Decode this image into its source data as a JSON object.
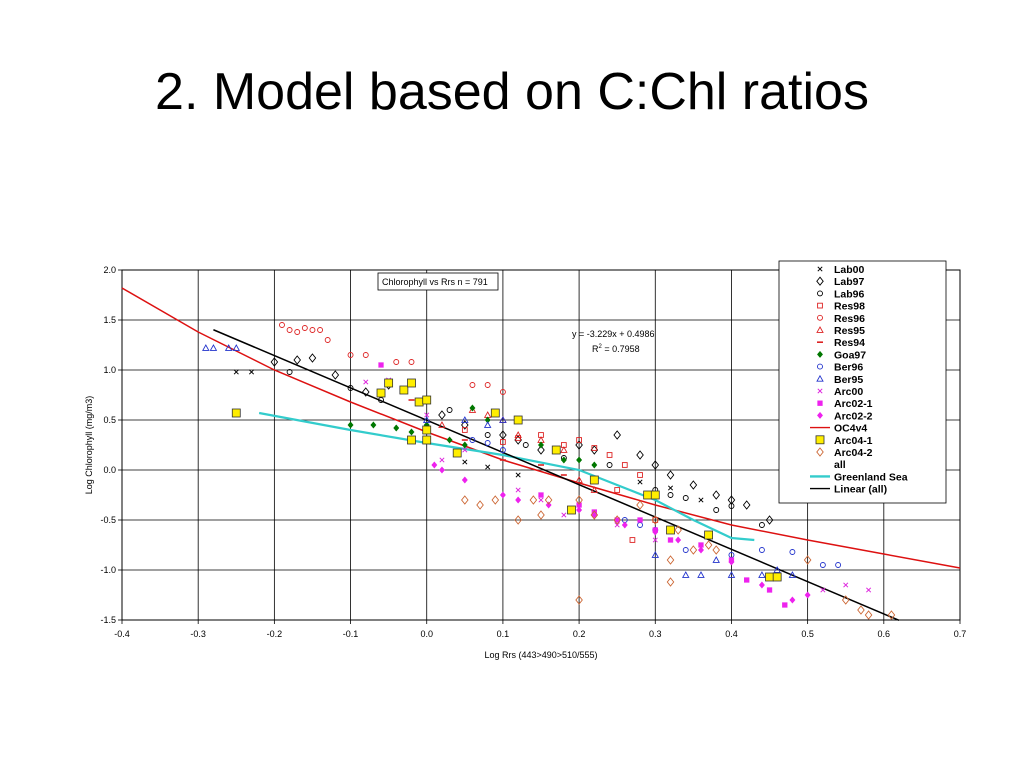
{
  "slide": {
    "title": "2. Model based on C:Chl ratios"
  },
  "chart_data": {
    "type": "scatter",
    "title": "",
    "xlabel": "Log Rrs (443>490>510/555)",
    "ylabel": "Log Chlorophyll (mg/m3)",
    "xlim": [
      -0.4,
      0.7
    ],
    "ylim": [
      -1.5,
      2.0
    ],
    "xticks": [
      "-0.4",
      "-0.3",
      "-0.2",
      "-0.1",
      "0.0",
      "0.1",
      "0.2",
      "0.3",
      "0.4",
      "0.5",
      "0.6",
      "0.7"
    ],
    "yticks": [
      "2.0",
      "1.5",
      "1.0",
      "0.5",
      "0.0",
      "-0.5",
      "-1.0",
      "-1.5"
    ],
    "grid": true,
    "legend_position": "top-right",
    "annotations": {
      "box": "Chlorophyll vs Rrs  n = 791",
      "equation": "y = -3.229x + 0.4986",
      "r2_prefix": "R",
      "r2_sup": "2",
      "r2_value": " = 0.7958"
    },
    "series": [
      {
        "name": "Lab00",
        "marker": "x-small",
        "color": "#000000",
        "points": [
          [
            -0.25,
            0.98
          ],
          [
            -0.23,
            0.98
          ],
          [
            0.05,
            0.08
          ],
          [
            0.08,
            0.03
          ],
          [
            0.12,
            -0.05
          ],
          [
            0.28,
            -0.12
          ],
          [
            0.32,
            -0.18
          ],
          [
            0.36,
            -0.3
          ]
        ]
      },
      {
        "name": "Lab97",
        "marker": "diamond-open",
        "color": "#000000",
        "points": [
          [
            -0.2,
            1.08
          ],
          [
            -0.17,
            1.1
          ],
          [
            -0.15,
            1.12
          ],
          [
            -0.12,
            0.95
          ],
          [
            -0.08,
            0.78
          ],
          [
            -0.05,
            0.85
          ],
          [
            0.0,
            0.7
          ],
          [
            0.02,
            0.55
          ],
          [
            0.05,
            0.45
          ],
          [
            0.1,
            0.35
          ],
          [
            0.12,
            0.3
          ],
          [
            0.15,
            0.2
          ],
          [
            0.2,
            0.25
          ],
          [
            0.22,
            0.2
          ],
          [
            0.25,
            0.35
          ],
          [
            0.28,
            0.15
          ],
          [
            0.3,
            0.05
          ],
          [
            0.32,
            -0.05
          ],
          [
            0.35,
            -0.15
          ],
          [
            0.38,
            -0.25
          ],
          [
            0.4,
            -0.3
          ],
          [
            0.42,
            -0.35
          ],
          [
            0.45,
            -0.5
          ]
        ]
      },
      {
        "name": "Lab96",
        "marker": "circle-open",
        "color": "#000000",
        "points": [
          [
            -0.18,
            0.98
          ],
          [
            -0.1,
            0.82
          ],
          [
            -0.06,
            0.7
          ],
          [
            0.03,
            0.6
          ],
          [
            0.08,
            0.35
          ],
          [
            0.13,
            0.25
          ],
          [
            0.18,
            0.12
          ],
          [
            0.24,
            0.05
          ],
          [
            0.3,
            -0.2
          ],
          [
            0.32,
            -0.25
          ],
          [
            0.34,
            -0.28
          ],
          [
            0.38,
            -0.4
          ],
          [
            0.4,
            -0.36
          ],
          [
            0.44,
            -0.55
          ]
        ]
      },
      {
        "name": "Res98",
        "marker": "square-open",
        "color": "#dd2222",
        "points": [
          [
            0.05,
            0.4
          ],
          [
            0.1,
            0.28
          ],
          [
            0.12,
            0.32
          ],
          [
            0.15,
            0.35
          ],
          [
            0.18,
            0.25
          ],
          [
            0.2,
            0.3
          ],
          [
            0.22,
            0.22
          ],
          [
            0.24,
            0.15
          ],
          [
            0.26,
            0.05
          ],
          [
            0.28,
            -0.05
          ],
          [
            0.25,
            -0.2
          ],
          [
            0.27,
            -0.7
          ],
          [
            0.3,
            -0.5
          ]
        ]
      },
      {
        "name": "Res96",
        "marker": "circle-open",
        "color": "#dd2222",
        "points": [
          [
            -0.19,
            1.45
          ],
          [
            -0.18,
            1.4
          ],
          [
            -0.17,
            1.38
          ],
          [
            -0.16,
            1.42
          ],
          [
            -0.15,
            1.4
          ],
          [
            -0.14,
            1.4
          ],
          [
            -0.13,
            1.3
          ],
          [
            -0.1,
            1.15
          ],
          [
            -0.08,
            1.15
          ],
          [
            -0.04,
            1.08
          ],
          [
            -0.02,
            1.08
          ],
          [
            0.06,
            0.85
          ],
          [
            0.08,
            0.85
          ],
          [
            0.1,
            0.78
          ]
        ]
      },
      {
        "name": "Res95",
        "marker": "triangle-open",
        "color": "#dd2222",
        "points": [
          [
            0.02,
            0.45
          ],
          [
            0.06,
            0.6
          ],
          [
            0.08,
            0.55
          ],
          [
            0.1,
            0.5
          ],
          [
            0.12,
            0.35
          ],
          [
            0.15,
            0.3
          ],
          [
            0.18,
            0.2
          ],
          [
            0.2,
            -0.1
          ],
          [
            0.22,
            -0.2
          ]
        ]
      },
      {
        "name": "Res94",
        "marker": "dash",
        "color": "#dd2222",
        "points": [
          [
            -0.02,
            0.7
          ],
          [
            0.05,
            0.3
          ],
          [
            0.1,
            0.1
          ],
          [
            0.15,
            0.05
          ],
          [
            0.18,
            -0.05
          ]
        ]
      },
      {
        "name": "Goa97",
        "marker": "diamond-filled",
        "color": "#007700",
        "points": [
          [
            -0.1,
            0.45
          ],
          [
            -0.07,
            0.45
          ],
          [
            -0.04,
            0.42
          ],
          [
            -0.02,
            0.38
          ],
          [
            0.0,
            0.45
          ],
          [
            0.03,
            0.3
          ],
          [
            0.05,
            0.25
          ],
          [
            0.06,
            0.62
          ],
          [
            0.08,
            0.5
          ],
          [
            0.15,
            0.25
          ],
          [
            0.18,
            0.1
          ],
          [
            0.2,
            0.1
          ],
          [
            0.22,
            0.05
          ]
        ]
      },
      {
        "name": "Ber96",
        "marker": "circle-open",
        "color": "#2233cc",
        "points": [
          [
            0.06,
            0.3
          ],
          [
            0.08,
            0.27
          ],
          [
            0.1,
            0.2
          ],
          [
            0.26,
            -0.5
          ],
          [
            0.28,
            -0.55
          ],
          [
            0.3,
            -0.6
          ],
          [
            0.34,
            -0.8
          ],
          [
            0.4,
            -0.85
          ],
          [
            0.44,
            -0.8
          ],
          [
            0.48,
            -0.82
          ],
          [
            0.52,
            -0.95
          ],
          [
            0.54,
            -0.95
          ]
        ]
      },
      {
        "name": "Ber95",
        "marker": "triangle-open",
        "color": "#2233cc",
        "points": [
          [
            -0.29,
            1.22
          ],
          [
            -0.28,
            1.22
          ],
          [
            -0.26,
            1.22
          ],
          [
            -0.25,
            1.22
          ],
          [
            0.0,
            0.5
          ],
          [
            0.05,
            0.5
          ],
          [
            0.08,
            0.45
          ],
          [
            0.1,
            0.5
          ],
          [
            0.3,
            -0.85
          ],
          [
            0.34,
            -1.05
          ],
          [
            0.36,
            -1.05
          ],
          [
            0.38,
            -0.9
          ],
          [
            0.4,
            -1.05
          ],
          [
            0.44,
            -1.05
          ],
          [
            0.46,
            -1.0
          ],
          [
            0.48,
            -1.05
          ]
        ]
      },
      {
        "name": "Arc00",
        "marker": "x-small",
        "color": "#dd22dd",
        "points": [
          [
            -0.08,
            0.88
          ],
          [
            -0.05,
            0.9
          ],
          [
            0.0,
            0.55
          ],
          [
            0.02,
            0.1
          ],
          [
            0.05,
            0.2
          ],
          [
            0.12,
            -0.2
          ],
          [
            0.15,
            -0.3
          ],
          [
            0.18,
            -0.45
          ],
          [
            0.25,
            -0.55
          ],
          [
            0.3,
            -0.7
          ],
          [
            0.52,
            -1.2
          ],
          [
            0.55,
            -1.15
          ],
          [
            0.58,
            -1.2
          ]
        ]
      },
      {
        "name": "Arc02-1",
        "marker": "square-filled",
        "color": "#ee22ee",
        "points": [
          [
            -0.06,
            1.05
          ],
          [
            0.15,
            -0.25
          ],
          [
            0.2,
            -0.35
          ],
          [
            0.22,
            -0.42
          ],
          [
            0.25,
            -0.5
          ],
          [
            0.28,
            -0.5
          ],
          [
            0.3,
            -0.6
          ],
          [
            0.32,
            -0.7
          ],
          [
            0.36,
            -0.75
          ],
          [
            0.4,
            -0.9
          ],
          [
            0.42,
            -1.1
          ],
          [
            0.45,
            -1.2
          ],
          [
            0.47,
            -1.35
          ]
        ]
      },
      {
        "name": "Arc02-2",
        "marker": "diamond-filled",
        "color": "#ee22ee",
        "points": [
          [
            0.01,
            0.05
          ],
          [
            0.02,
            0.0
          ],
          [
            0.05,
            -0.1
          ],
          [
            0.1,
            -0.25
          ],
          [
            0.12,
            -0.3
          ],
          [
            0.16,
            -0.35
          ],
          [
            0.2,
            -0.4
          ],
          [
            0.22,
            -0.45
          ],
          [
            0.26,
            -0.55
          ],
          [
            0.3,
            -0.62
          ],
          [
            0.33,
            -0.7
          ],
          [
            0.36,
            -0.8
          ],
          [
            0.4,
            -0.92
          ],
          [
            0.44,
            -1.15
          ],
          [
            0.48,
            -1.3
          ],
          [
            0.5,
            -1.25
          ]
        ]
      },
      {
        "name": "Arc04-1",
        "marker": "square-yellow",
        "color": "#ffee00",
        "points": [
          [
            -0.25,
            0.57
          ],
          [
            -0.06,
            0.77
          ],
          [
            -0.05,
            0.87
          ],
          [
            -0.03,
            0.8
          ],
          [
            -0.02,
            0.87
          ],
          [
            -0.01,
            0.68
          ],
          [
            0.0,
            0.7
          ],
          [
            0.0,
            0.4
          ],
          [
            0.0,
            0.3
          ],
          [
            -0.02,
            0.3
          ],
          [
            0.04,
            0.17
          ],
          [
            0.09,
            0.57
          ],
          [
            0.12,
            0.5
          ],
          [
            0.17,
            0.2
          ],
          [
            0.19,
            -0.4
          ],
          [
            0.22,
            -0.1
          ],
          [
            0.29,
            -0.25
          ],
          [
            0.3,
            -0.25
          ],
          [
            0.32,
            -0.6
          ],
          [
            0.37,
            -0.65
          ],
          [
            0.45,
            -1.07
          ],
          [
            0.46,
            -1.07
          ]
        ]
      },
      {
        "name": "Arc04-2",
        "marker": "diamond-open",
        "color": "#cc6633",
        "points": [
          [
            0.05,
            -0.3
          ],
          [
            0.07,
            -0.35
          ],
          [
            0.09,
            -0.3
          ],
          [
            0.12,
            -0.5
          ],
          [
            0.14,
            -0.3
          ],
          [
            0.15,
            -0.45
          ],
          [
            0.16,
            -0.3
          ],
          [
            0.2,
            -0.3
          ],
          [
            0.22,
            -0.45
          ],
          [
            0.25,
            -0.5
          ],
          [
            0.28,
            -0.35
          ],
          [
            0.3,
            -0.5
          ],
          [
            0.32,
            -0.9
          ],
          [
            0.33,
            -0.6
          ],
          [
            0.35,
            -0.8
          ],
          [
            0.37,
            -0.75
          ],
          [
            0.38,
            -0.8
          ],
          [
            0.2,
            -1.3
          ],
          [
            0.32,
            -1.12
          ],
          [
            0.5,
            -0.9
          ],
          [
            0.55,
            -1.3
          ],
          [
            0.57,
            -1.4
          ],
          [
            0.61,
            -1.45
          ],
          [
            0.58,
            -1.45
          ]
        ]
      }
    ],
    "lines": [
      {
        "name": "OC4v4",
        "color": "#dd1111",
        "x": [
          -0.4,
          -0.3,
          -0.2,
          -0.1,
          0.0,
          0.1,
          0.2,
          0.3,
          0.4,
          0.5,
          0.6,
          0.7
        ],
        "y": [
          1.82,
          1.38,
          1.0,
          0.68,
          0.38,
          0.1,
          -0.13,
          -0.35,
          -0.55,
          -0.7,
          -0.84,
          -0.98
        ]
      },
      {
        "name": "Greenland Sea",
        "color": "#33cccc",
        "x": [
          -0.22,
          -0.1,
          0.0,
          0.1,
          0.2,
          0.3,
          0.35,
          0.4,
          0.43
        ],
        "y": [
          0.57,
          0.4,
          0.27,
          0.15,
          0.0,
          -0.3,
          -0.5,
          -0.68,
          -0.7
        ]
      },
      {
        "name": "Linear (all)",
        "color": "#000000",
        "x": [
          -0.28,
          0.62
        ],
        "y": [
          1.4025,
          -1.5034
        ]
      }
    ],
    "legend": [
      {
        "label": "Lab00",
        "marker": "x-small",
        "color": "#000000"
      },
      {
        "label": "Lab97",
        "marker": "diamond-open",
        "color": "#000000"
      },
      {
        "label": "Lab96",
        "marker": "circle-open",
        "color": "#000000"
      },
      {
        "label": "Res98",
        "marker": "square-open",
        "color": "#dd2222"
      },
      {
        "label": "Res96",
        "marker": "circle-open",
        "color": "#dd2222"
      },
      {
        "label": "Res95",
        "marker": "triangle-open",
        "color": "#dd2222"
      },
      {
        "label": "Res94",
        "marker": "dash",
        "color": "#dd2222"
      },
      {
        "label": "Goa97",
        "marker": "diamond-filled",
        "color": "#007700"
      },
      {
        "label": "Ber96",
        "marker": "circle-open",
        "color": "#2233cc"
      },
      {
        "label": "Ber95",
        "marker": "triangle-open",
        "color": "#2233cc"
      },
      {
        "label": "Arc00",
        "marker": "x-small",
        "color": "#dd22dd"
      },
      {
        "label": "Arc02-1",
        "marker": "square-filled",
        "color": "#ee22ee"
      },
      {
        "label": "Arc02-2",
        "marker": "diamond-filled",
        "color": "#ee22ee"
      },
      {
        "label": "OC4v4",
        "marker": "line",
        "color": "#dd1111"
      },
      {
        "label": "Arc04-1",
        "marker": "square-yellow",
        "color": "#ffee00"
      },
      {
        "label": "Arc04-2",
        "marker": "diamond-open",
        "color": "#cc6633"
      },
      {
        "label": "all",
        "marker": "none",
        "color": "#000000"
      },
      {
        "label": "Greenland Sea",
        "marker": "line-thick",
        "color": "#33cccc"
      },
      {
        "label": "Linear (all)",
        "marker": "line",
        "color": "#000000"
      }
    ]
  }
}
